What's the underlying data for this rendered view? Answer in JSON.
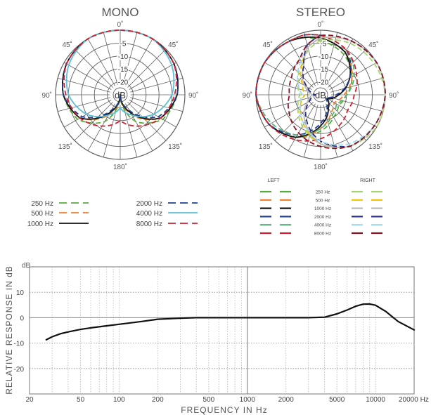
{
  "colors": {
    "grid": "#606060",
    "text": "#555555",
    "c250": "#5aaa3c",
    "c500": "#f07d2a",
    "c1000": "#111111",
    "c2000": "#1f3f90",
    "c4000": "#5bc0d8",
    "c8000": "#d32030",
    "stereo_right_250": "#a6d46e",
    "stereo_right_500": "#f2c200",
    "stereo_right_1000": "#b8b8b8",
    "stereo_right_2000": "#2a2f8c",
    "stereo_right_4000": "#9ed8ee",
    "stereo_right_8000": "#8a1020",
    "stereo_left_4000": "#58b07a"
  },
  "chart_data": [
    {
      "type": "polar",
      "title": "MONO",
      "center_label": "dB",
      "radial_labels": [
        "-5",
        "-10",
        "-15",
        "-20"
      ],
      "angle_labels": [
        "0˚",
        "45˚",
        "90˚",
        "135˚",
        "180˚",
        "135˚",
        "90˚",
        "45˚"
      ],
      "rlim": [
        -25,
        0
      ],
      "series": [
        {
          "name": "250 Hz",
          "color_key": "c250",
          "dashed": true,
          "angles": [
            0,
            30,
            60,
            90,
            120,
            150,
            180,
            210,
            240,
            270,
            300,
            330,
            345
          ],
          "values": [
            0,
            0,
            -1,
            -3,
            -6,
            -13,
            -25,
            -13,
            -6,
            -3,
            -1,
            0,
            0
          ]
        },
        {
          "name": "500 Hz",
          "color_key": "c500",
          "dashed": true,
          "angles": [
            0,
            30,
            60,
            90,
            120,
            150,
            180,
            210,
            240,
            270,
            300,
            330,
            345
          ],
          "values": [
            0,
            0,
            -1,
            -3,
            -7,
            -16,
            -25,
            -16,
            -7,
            -3,
            -1,
            0,
            0
          ]
        },
        {
          "name": "1000 Hz",
          "color_key": "c1000",
          "dashed": false,
          "angles": [
            0,
            30,
            60,
            90,
            120,
            150,
            180,
            210,
            240,
            270,
            300,
            330,
            345
          ],
          "values": [
            0,
            0,
            -1,
            -3,
            -7,
            -17,
            -25,
            -17,
            -7,
            -3,
            -1,
            0,
            0
          ]
        },
        {
          "name": "2000 Hz",
          "color_key": "c2000",
          "dashed": true,
          "angles": [
            0,
            30,
            60,
            90,
            120,
            150,
            180,
            210,
            240,
            270,
            300,
            330,
            345
          ],
          "values": [
            0,
            0,
            -1,
            -3,
            -8,
            -18,
            -25,
            -18,
            -8,
            -3,
            -1,
            0,
            0
          ]
        },
        {
          "name": "4000 Hz",
          "color_key": "c4000",
          "dashed": false,
          "angles": [
            0,
            30,
            60,
            90,
            120,
            150,
            180,
            210,
            240,
            270,
            300,
            330,
            345
          ],
          "values": [
            0,
            0,
            -2,
            -5,
            -10,
            -16,
            -20,
            -16,
            -10,
            -5,
            -2,
            0,
            0
          ]
        },
        {
          "name": "8000 Hz",
          "color_key": "c8000",
          "dashed": true,
          "angles": [
            0,
            30,
            60,
            90,
            120,
            150,
            180,
            210,
            240,
            270,
            300,
            330,
            345
          ],
          "values": [
            0,
            0,
            -1,
            -4,
            -7,
            -11,
            -15,
            -11,
            -7,
            -4,
            -1,
            0,
            0
          ]
        }
      ],
      "legend": [
        {
          "label": "250 Hz",
          "color_key": "c250",
          "dashed": true
        },
        {
          "label": "500 Hz",
          "color_key": "c500",
          "dashed": true
        },
        {
          "label": "1000 Hz",
          "color_key": "c1000",
          "dashed": false
        },
        {
          "label": "2000 Hz",
          "color_key": "c2000",
          "dashed": true
        },
        {
          "label": "4000 Hz",
          "color_key": "c4000",
          "dashed": false
        },
        {
          "label": "8000 Hz",
          "color_key": "c8000",
          "dashed": true
        }
      ]
    },
    {
      "type": "polar",
      "title": "STEREO",
      "center_label": "dB",
      "radial_labels": [
        "-5",
        "-10",
        "-15",
        "-20"
      ],
      "angle_labels": [
        "0˚",
        "45˚",
        "90˚",
        "135˚",
        "180˚",
        "135˚",
        "90˚",
        "45˚"
      ],
      "rlim": [
        -25,
        0
      ],
      "series": [
        {
          "name": "LEFT 250 Hz",
          "color_key": "c250",
          "dashed": true,
          "angles": [
            0,
            30,
            60,
            90,
            120,
            150,
            180,
            210,
            240,
            270,
            300,
            330,
            345
          ],
          "values": [
            -4,
            -7,
            -11,
            -15,
            -17,
            -15,
            -11,
            -6,
            -2,
            0,
            0,
            -1,
            -2
          ]
        },
        {
          "name": "LEFT 500 Hz",
          "color_key": "c500",
          "dashed": true,
          "angles": [
            0,
            30,
            60,
            90,
            120,
            150,
            180,
            210,
            240,
            270,
            300,
            330,
            345
          ],
          "values": [
            -3,
            -6,
            -11,
            -16,
            -19,
            -17,
            -12,
            -6,
            -2,
            0,
            0,
            -1,
            -2
          ]
        },
        {
          "name": "LEFT 1000 Hz",
          "color_key": "c1000",
          "dashed": false,
          "angles": [
            0,
            30,
            60,
            90,
            120,
            150,
            180,
            210,
            240,
            270,
            300,
            330,
            345
          ],
          "values": [
            -3,
            -6,
            -12,
            -18,
            -22,
            -19,
            -13,
            -6,
            -2,
            0,
            0,
            -1,
            -2
          ]
        },
        {
          "name": "LEFT 2000 Hz",
          "color_key": "c2000",
          "dashed": true,
          "angles": [
            0,
            30,
            60,
            90,
            120,
            150,
            180,
            210,
            240,
            270,
            300,
            330,
            345
          ],
          "values": [
            -2,
            -5,
            -12,
            -19,
            -23,
            -20,
            -14,
            -7,
            -2,
            0,
            0,
            -1,
            -1
          ]
        },
        {
          "name": "LEFT 4000 Hz",
          "color_key": "stereo_left_4000",
          "dashed": true,
          "angles": [
            0,
            30,
            60,
            90,
            120,
            150,
            180,
            210,
            240,
            270,
            300,
            330,
            345
          ],
          "values": [
            -2,
            -5,
            -10,
            -15,
            -18,
            -16,
            -12,
            -7,
            -3,
            0,
            0,
            -1,
            -1
          ]
        },
        {
          "name": "LEFT 8000 Hz",
          "color_key": "c8000",
          "dashed": true,
          "angles": [
            0,
            30,
            60,
            90,
            120,
            150,
            180,
            210,
            240,
            270,
            300,
            330,
            345
          ],
          "values": [
            -2,
            -5,
            -9,
            -12,
            -13,
            -11,
            -8,
            -5,
            -2,
            0,
            0,
            -1,
            -1
          ]
        },
        {
          "name": "RIGHT 250 Hz",
          "color_key": "stereo_right_250",
          "dashed": true,
          "angles": [
            0,
            30,
            60,
            90,
            120,
            150,
            180,
            210,
            240,
            270,
            300,
            330,
            345
          ],
          "values": [
            -4,
            -2,
            -1,
            0,
            0,
            -2,
            -6,
            -11,
            -15,
            -17,
            -15,
            -11,
            -7
          ]
        },
        {
          "name": "RIGHT 500 Hz",
          "color_key": "stereo_right_500",
          "dashed": true,
          "angles": [
            0,
            30,
            60,
            90,
            120,
            150,
            180,
            210,
            240,
            270,
            300,
            330,
            345
          ],
          "values": [
            -3,
            -1,
            0,
            0,
            -1,
            -2,
            -6,
            -12,
            -16,
            -19,
            -17,
            -11,
            -6
          ]
        },
        {
          "name": "RIGHT 1000 Hz",
          "color_key": "stereo_right_1000",
          "dashed": false,
          "angles": [
            0,
            30,
            60,
            90,
            120,
            150,
            180,
            210,
            240,
            270,
            300,
            330,
            345
          ],
          "values": [
            -3,
            -1,
            0,
            0,
            -1,
            -2,
            -6,
            -13,
            -19,
            -22,
            -18,
            -12,
            -6
          ]
        },
        {
          "name": "RIGHT 2000 Hz",
          "color_key": "stereo_right_2000",
          "dashed": true,
          "angles": [
            0,
            30,
            60,
            90,
            120,
            150,
            180,
            210,
            240,
            270,
            300,
            330,
            345
          ],
          "values": [
            -2,
            -1,
            0,
            0,
            -1,
            -2,
            -7,
            -14,
            -20,
            -23,
            -19,
            -12,
            -5
          ]
        },
        {
          "name": "RIGHT 4000 Hz",
          "color_key": "stereo_right_4000",
          "dashed": true,
          "angles": [
            0,
            30,
            60,
            90,
            120,
            150,
            180,
            210,
            240,
            270,
            300,
            330,
            345
          ],
          "values": [
            -2,
            -1,
            0,
            0,
            -1,
            -3,
            -7,
            -12,
            -16,
            -18,
            -15,
            -10,
            -5
          ]
        },
        {
          "name": "RIGHT 8000 Hz",
          "color_key": "stereo_right_8000",
          "dashed": true,
          "angles": [
            0,
            30,
            60,
            90,
            120,
            150,
            180,
            210,
            240,
            270,
            300,
            330,
            345
          ],
          "values": [
            -2,
            -1,
            0,
            0,
            -1,
            -2,
            -5,
            -8,
            -11,
            -13,
            -12,
            -9,
            -5
          ]
        }
      ],
      "legend": {
        "left_header": "LEFT",
        "right_header": "RIGHT",
        "rows": [
          {
            "label": "250 Hz",
            "left_color_key": "c250",
            "right_color_key": "stereo_right_250"
          },
          {
            "label": "500 Hz",
            "left_color_key": "c500",
            "right_color_key": "stereo_right_500"
          },
          {
            "label": "1000 Hz",
            "left_color_key": "c1000",
            "right_color_key": "stereo_right_1000"
          },
          {
            "label": "2000 Hz",
            "left_color_key": "c2000",
            "right_color_key": "stereo_right_2000"
          },
          {
            "label": "4000 Hz",
            "left_color_key": "stereo_left_4000",
            "right_color_key": "stereo_right_4000"
          },
          {
            "label": "8000 Hz",
            "left_color_key": "c8000",
            "right_color_key": "stereo_right_8000"
          }
        ]
      }
    },
    {
      "type": "line",
      "xscale": "log",
      "xlabel": "FREQUENCY IN Hz",
      "ylabel": "RELATIVE RESPONSE IN dB",
      "yunit": "dB",
      "xlim": [
        20,
        20000
      ],
      "ylim": [
        -30,
        20
      ],
      "x_tick_values": [
        20,
        50,
        100,
        200,
        500,
        1000,
        2000,
        5000,
        10000,
        20000
      ],
      "x_tick_labels": [
        "20",
        "50",
        "100",
        "200",
        "500",
        "1000",
        "2000",
        "5000",
        "10000",
        "20000 Hz"
      ],
      "y_tick_values": [
        10,
        0,
        -10,
        -20
      ],
      "y_tick_labels": [
        "10",
        "0",
        "-10",
        "-20"
      ],
      "grid": true,
      "series": [
        {
          "color_key": "c1000",
          "x": [
            27,
            30,
            35,
            40,
            50,
            60,
            80,
            100,
            150,
            200,
            300,
            400,
            500,
            700,
            1000,
            1500,
            2000,
            3000,
            4000,
            5000,
            6000,
            7000,
            8000,
            9000,
            10000,
            12000,
            15000,
            20000
          ],
          "y": [
            -8.7,
            -7.5,
            -6.3,
            -5.6,
            -4.6,
            -4.0,
            -3.2,
            -2.6,
            -1.5,
            -0.6,
            -0.2,
            0,
            0,
            0,
            0,
            0,
            0,
            0,
            0.2,
            1.5,
            3.0,
            4.5,
            5.3,
            5.4,
            4.9,
            2.5,
            -1.5,
            -4.8
          ]
        }
      ]
    }
  ]
}
